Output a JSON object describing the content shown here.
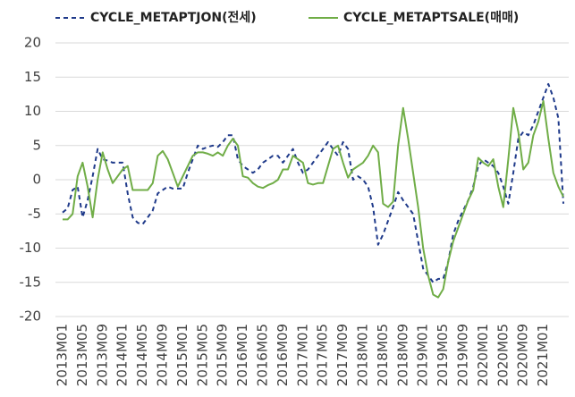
{
  "chart_data": {
    "type": "line",
    "categories": [
      "2013M01",
      null,
      null,
      null,
      "2013M05",
      null,
      null,
      null,
      "2013M09",
      null,
      null,
      null,
      "2014M01",
      null,
      null,
      null,
      "2014M05",
      null,
      null,
      null,
      "2014M09",
      null,
      null,
      null,
      "2015M01",
      null,
      null,
      null,
      "2015M05",
      null,
      null,
      null,
      "2015M09",
      null,
      null,
      null,
      "2016M01",
      null,
      null,
      null,
      "2016M05",
      null,
      null,
      null,
      "2016M09",
      null,
      null,
      null,
      "2017M01",
      null,
      null,
      null,
      "2017M05",
      null,
      null,
      null,
      "2017M09",
      null,
      null,
      null,
      "2018M01",
      null,
      null,
      null,
      "2018M05",
      null,
      null,
      null,
      "2018M09",
      null,
      null,
      null,
      "2019M01",
      null,
      null,
      null,
      "2019M05",
      null,
      null,
      null,
      "2019M09",
      null,
      null,
      null,
      "2020M01",
      null,
      null,
      null,
      "2020M05",
      null,
      null,
      null,
      "2020M09",
      null,
      null,
      null,
      "2021M01",
      null,
      null,
      null,
      null
    ],
    "series": [
      {
        "name": "CYCLE_METAPTJON(전세)",
        "color": "#1f3a8a",
        "dashed": true,
        "values": [
          -4.8,
          -4.2,
          -1.5,
          -1,
          -5.5,
          -3,
          0.5,
          4.5,
          3,
          2.8,
          2.5,
          2.5,
          2.5,
          -2,
          -5.5,
          -6.3,
          -6.5,
          -5.5,
          -4.5,
          -2,
          -1.5,
          -1,
          -1.3,
          -1.3,
          -1.3,
          1,
          3,
          5,
          4.5,
          4.8,
          5,
          4.8,
          5.5,
          6.5,
          6.5,
          3,
          2,
          1.5,
          1,
          1.5,
          2.5,
          3,
          3.5,
          3.5,
          2.5,
          3.5,
          4.5,
          2.5,
          1,
          1.5,
          2.5,
          3.5,
          4.5,
          5.5,
          4.5,
          3.5,
          5.5,
          4.5,
          0,
          0.5,
          0,
          -1,
          -4,
          -9.5,
          -8,
          -6,
          -4,
          -1.8,
          -3,
          -4,
          -5,
          -9,
          -13,
          -14,
          -15,
          -14.5,
          -14.5,
          -12,
          -8,
          -6,
          -4.5,
          -3,
          -1,
          2,
          3,
          2.5,
          2,
          1,
          -1,
          -3.5,
          1,
          6,
          7,
          6.5,
          8,
          10,
          12,
          14,
          12,
          9,
          -3.5
        ]
      },
      {
        "name": "CYCLE_METAPTSALE(매매)",
        "color": "#70ad47",
        "dashed": false,
        "values": [
          -5.8,
          -5.8,
          -5,
          0.5,
          2.5,
          -1,
          -5.5,
          0,
          4,
          1.5,
          -0.5,
          0.5,
          1.5,
          2,
          -1.5,
          -1.5,
          -1.5,
          -1.5,
          -0.5,
          3.5,
          4.2,
          3,
          1,
          -1,
          0.5,
          2,
          3.5,
          4,
          4,
          3.8,
          3.5,
          4,
          3.5,
          5,
          6,
          5,
          0.5,
          0.3,
          -0.5,
          -1,
          -1.2,
          -0.8,
          -0.5,
          0,
          1.5,
          1.5,
          3.5,
          3,
          2.5,
          -0.5,
          -0.7,
          -0.5,
          -0.5,
          2,
          4.5,
          5,
          2.5,
          0.3,
          1.5,
          2,
          2.5,
          3.5,
          5,
          4,
          -3.5,
          -4,
          -3.2,
          5,
          10.5,
          6,
          1,
          -4,
          -10,
          -14,
          -16.8,
          -17.2,
          -16,
          -12,
          -9,
          -7,
          -5,
          -3,
          -1.5,
          3.2,
          2.5,
          2,
          3,
          -1,
          -4,
          3,
          10.5,
          7,
          1.5,
          2.5,
          6.5,
          8.5,
          11.5,
          6,
          1,
          -1,
          -2.5
        ]
      }
    ],
    "ylim": [
      -20,
      20
    ],
    "yticks": [
      -20,
      -15,
      -10,
      -5,
      0,
      5,
      10,
      15,
      20
    ],
    "grid": true
  }
}
